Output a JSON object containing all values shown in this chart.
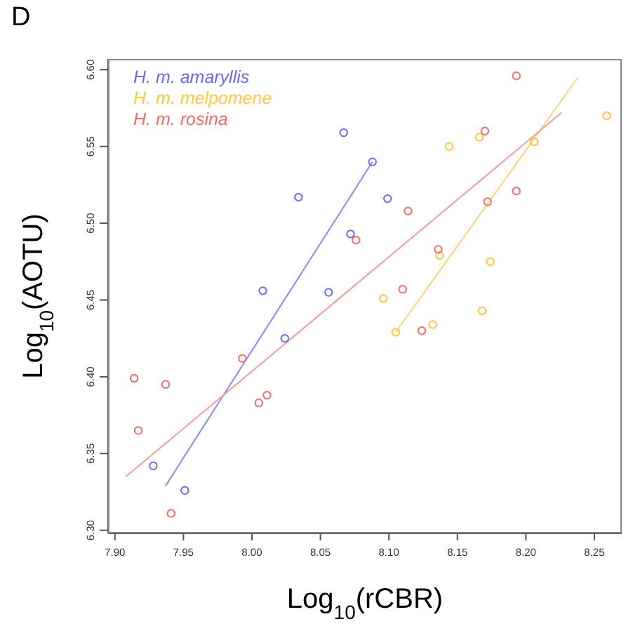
{
  "chart_data": {
    "type": "scatter",
    "xlabel": "Log$_{10}$(rCBR)",
    "ylabel": "Log$_{10}$(AOTU)",
    "annotations": [
      "D"
    ],
    "xlim": [
      7.895,
      8.27
    ],
    "ylim": [
      6.298,
      6.607
    ],
    "xticks": [
      {
        "value": 7.9,
        "label": "7.90"
      },
      {
        "value": 7.95,
        "label": "7.95"
      },
      {
        "value": 8.0,
        "label": "8.00"
      },
      {
        "value": 8.05,
        "label": "8.05"
      },
      {
        "value": 8.1,
        "label": "8.10"
      },
      {
        "value": 8.15,
        "label": "8.15"
      },
      {
        "value": 8.2,
        "label": "8.20"
      },
      {
        "value": 8.25,
        "label": "8.25"
      }
    ],
    "yticks": [
      {
        "value": 6.3,
        "label": "6.30"
      },
      {
        "value": 6.35,
        "label": "6.35"
      },
      {
        "value": 6.4,
        "label": "6.40"
      },
      {
        "value": 6.45,
        "label": "6.45"
      },
      {
        "value": 6.5,
        "label": "6.50"
      },
      {
        "value": 6.55,
        "label": "6.55"
      },
      {
        "value": 6.6,
        "label": "6.60"
      }
    ],
    "legend": "top left",
    "marker": "circle",
    "series": [
      {
        "name": "H. m. amaryllis",
        "color": "#6b6bf0",
        "x": [
          8.067,
          8.034,
          8.072,
          8.008,
          8.056,
          8.088,
          8.099,
          8.024,
          7.928,
          7.951
        ],
        "values": [
          6.559,
          6.517,
          6.493,
          6.456,
          6.455,
          6.54,
          6.516,
          6.425,
          6.342,
          6.326
        ]
      },
      {
        "name": "H. m. melpomene",
        "color": "#ffc640",
        "x": [
          8.259,
          8.206,
          8.166,
          8.144,
          8.137,
          8.174,
          8.096,
          8.105,
          8.132,
          8.168
        ],
        "values": [
          6.57,
          6.553,
          6.556,
          6.55,
          6.479,
          6.475,
          6.451,
          6.429,
          6.434,
          6.443
        ]
      },
      {
        "name": "H. m. rosina",
        "color": "#f06b6b",
        "x": [
          8.076,
          8.193,
          8.17,
          8.114,
          8.193,
          8.172,
          8.136,
          8.11,
          8.124,
          7.993,
          7.914,
          7.937,
          8.011,
          8.005,
          7.917,
          7.941
        ],
        "values": [
          6.489,
          6.596,
          6.56,
          6.508,
          6.521,
          6.514,
          6.483,
          6.457,
          6.43,
          6.412,
          6.399,
          6.395,
          6.388,
          6.383,
          6.365,
          6.311
        ]
      },
      {
        "type": "line",
        "marker": "none",
        "color": "#8a8af5",
        "x": [
          7.937,
          8.088
        ],
        "values": [
          6.329,
          6.54
        ]
      },
      {
        "type": "line",
        "marker": "none",
        "color": "#ffd37a",
        "x": [
          8.105,
          8.238
        ],
        "values": [
          6.429,
          6.595
        ]
      },
      {
        "type": "line",
        "marker": "none",
        "color": "#f59a9a",
        "x": [
          7.908,
          8.226
        ],
        "values": [
          6.335,
          6.572
        ]
      }
    ]
  }
}
